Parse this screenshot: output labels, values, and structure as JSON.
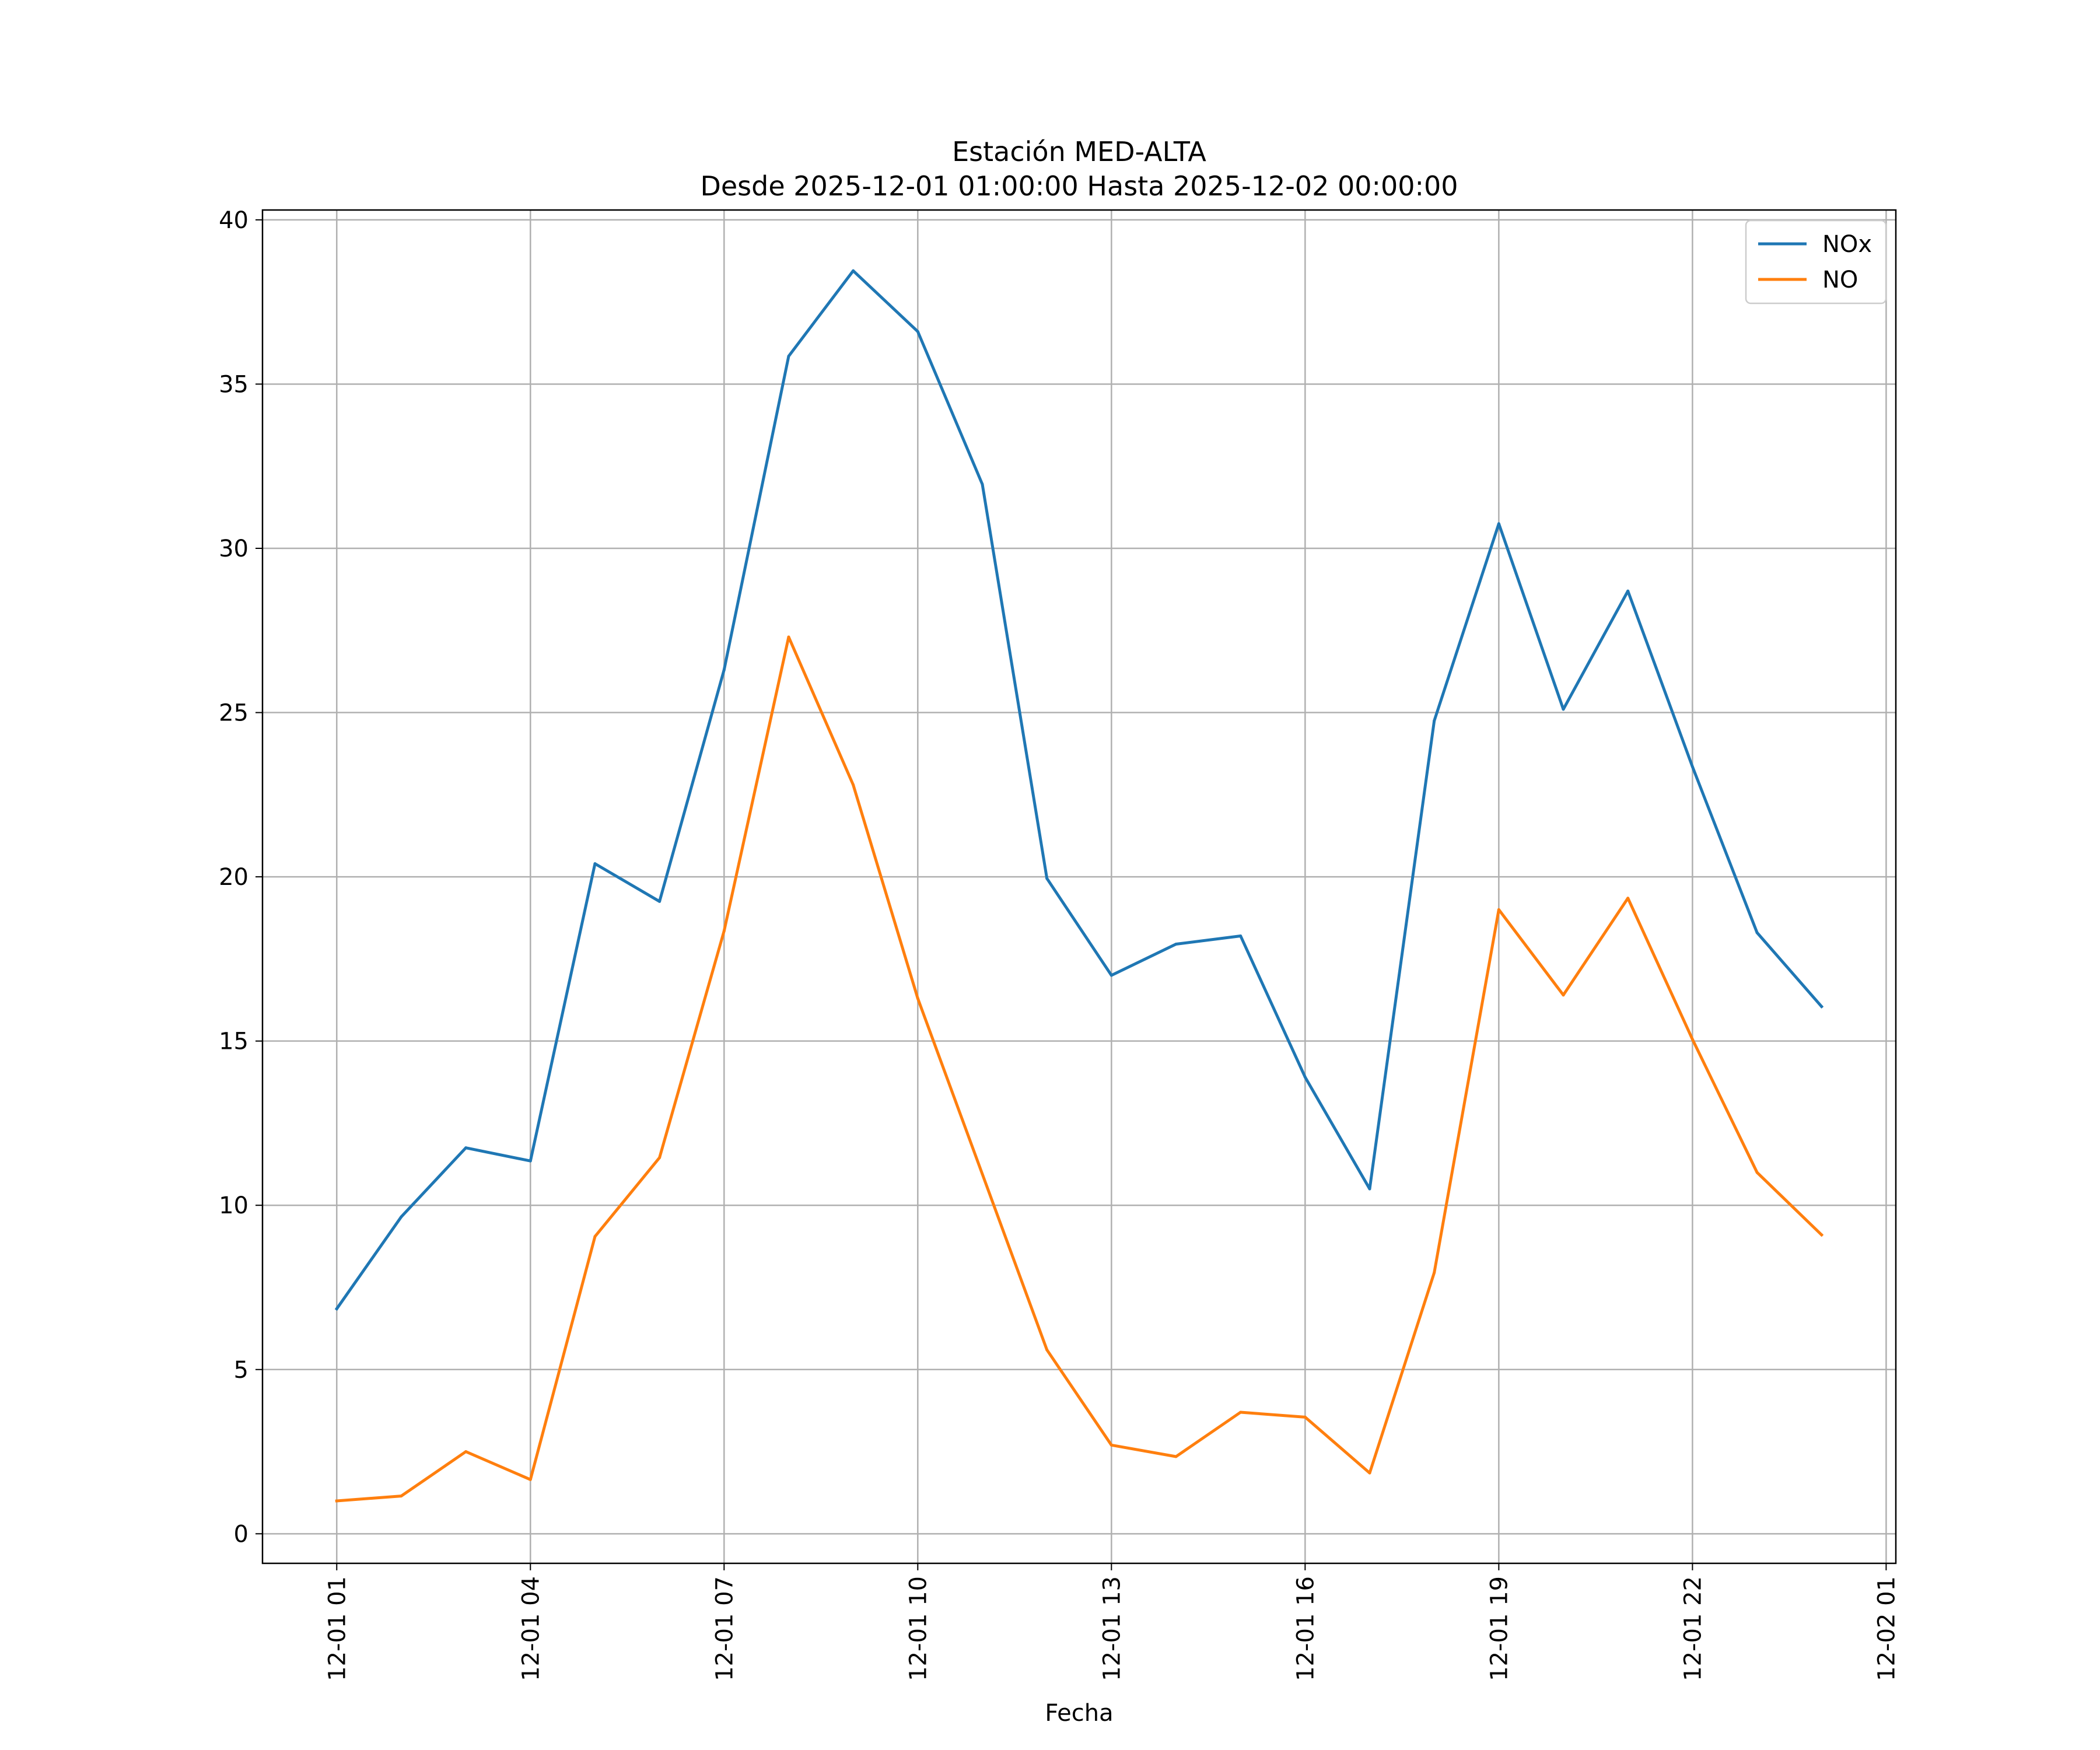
{
  "chart_data": {
    "type": "line",
    "title": "Estación MED-ALTA",
    "subtitle": "Desde 2025-12-01 01:00:00 Hasta 2025-12-02 00:00:00",
    "xlabel": "Fecha",
    "ylabel": "",
    "x_hours": [
      1,
      2,
      3,
      4,
      5,
      6,
      7,
      8,
      9,
      10,
      11,
      12,
      13,
      14,
      15,
      16,
      17,
      18,
      19,
      20,
      21,
      22,
      23,
      24
    ],
    "xlim": [
      -0.15,
      25.15
    ],
    "ylim": [
      -0.9,
      40.3
    ],
    "xticks": [
      {
        "hour": 1,
        "label": "12-01 01"
      },
      {
        "hour": 4,
        "label": "12-01 04"
      },
      {
        "hour": 7,
        "label": "12-01 07"
      },
      {
        "hour": 10,
        "label": "12-01 10"
      },
      {
        "hour": 13,
        "label": "12-01 13"
      },
      {
        "hour": 16,
        "label": "12-01 16"
      },
      {
        "hour": 19,
        "label": "12-01 19"
      },
      {
        "hour": 22,
        "label": "12-01 22"
      },
      {
        "hour": 25,
        "label": "12-02 01"
      }
    ],
    "yticks": [
      {
        "value": 0,
        "label": "0"
      },
      {
        "value": 5,
        "label": "5"
      },
      {
        "value": 10,
        "label": "10"
      },
      {
        "value": 15,
        "label": "15"
      },
      {
        "value": 20,
        "label": "20"
      },
      {
        "value": 25,
        "label": "25"
      },
      {
        "value": 30,
        "label": "30"
      },
      {
        "value": 35,
        "label": "35"
      },
      {
        "value": 40,
        "label": "40"
      }
    ],
    "grid": true,
    "legend_position": "top-right",
    "series": [
      {
        "name": "NOx",
        "color": "#1f77b4",
        "values": [
          6.85,
          9.65,
          11.75,
          11.35,
          20.4,
          19.25,
          26.3,
          35.85,
          38.45,
          36.6,
          31.95,
          19.95,
          17.0,
          17.95,
          18.2,
          13.9,
          10.5,
          24.75,
          30.75,
          25.1,
          28.7,
          23.35,
          18.3,
          16.05
        ]
      },
      {
        "name": "NO",
        "color": "#ff7f0e",
        "values": [
          1.0,
          1.15,
          2.5,
          1.65,
          9.05,
          11.45,
          18.35,
          27.3,
          22.8,
          16.3,
          10.95,
          5.6,
          2.7,
          2.35,
          3.7,
          3.55,
          1.85,
          7.95,
          19.0,
          16.4,
          19.35,
          15.05,
          11.0,
          9.1
        ]
      }
    ]
  }
}
